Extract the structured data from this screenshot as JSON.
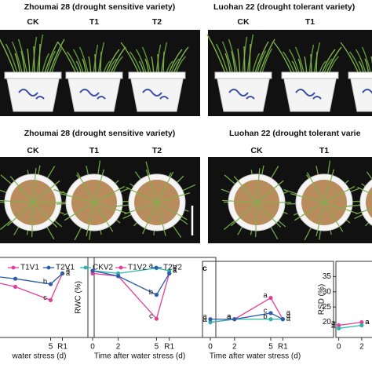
{
  "photos": [
    {
      "title": "Zhoumai 28 (drought sensitive variety)",
      "labels": [
        "CK",
        "T1",
        "T2"
      ]
    },
    {
      "title": "Luohan 22 (drought tolerant variety)",
      "labels": [
        "CK",
        "T1"
      ]
    },
    {
      "title": "Zhoumai 28 (drought sensitive variety)",
      "labels": [
        "CK",
        "T1",
        "T2"
      ]
    },
    {
      "title": "Luohan 22 (drought tolerant varie",
      "labels": [
        "CK",
        "T1"
      ]
    }
  ],
  "panel_label": "c",
  "chart_data": [
    {
      "type": "line",
      "xlabel": "water stress (d)",
      "x": [
        0,
        2,
        5,
        6
      ],
      "xlim": [
        0.7,
        6.7
      ],
      "xticks": [
        5,
        {
          "value": 6,
          "label": "R1"
        }
      ],
      "ylim": [
        55,
        85
      ],
      "series": [
        {
          "name": "T1V1",
          "color": "#e0409a",
          "values": [
            76,
            74,
            69,
            79
          ],
          "letters": [
            null,
            null,
            "c",
            "a"
          ]
        },
        {
          "name": "T2V1",
          "color": "#2a5caa",
          "values": [
            78,
            77,
            75,
            79
          ],
          "letters": [
            null,
            null,
            "b",
            "a"
          ]
        }
      ]
    },
    {
      "type": "line",
      "xlabel": "Time after water stress (d)",
      "ylabel": "RWC (%)",
      "x": [
        0,
        2,
        5,
        6
      ],
      "xlim": [
        -0.37,
        7.8
      ],
      "xticks": [
        0,
        2,
        5,
        {
          "value": 6,
          "label": "R1"
        }
      ],
      "ylim": [
        55,
        85
      ],
      "series": [
        {
          "name": "CKV2",
          "color": "#2bb5a8",
          "values": [
            80,
            79,
            81,
            80
          ],
          "letters": [
            null,
            null,
            "a",
            "a"
          ]
        },
        {
          "name": "T1V2",
          "color": "#e0409a",
          "values": [
            79,
            78,
            62,
            79
          ],
          "letters": [
            null,
            null,
            "c",
            "a"
          ]
        },
        {
          "name": "T2V2",
          "color": "#2a5caa",
          "values": [
            80,
            78,
            71,
            79
          ],
          "letters": [
            null,
            null,
            "b",
            "a"
          ]
        }
      ]
    },
    {
      "type": "line",
      "xlabel": "Time after water stress (d)",
      "x": [
        0,
        2,
        5,
        6
      ],
      "xlim": [
        -0.65,
        8.25
      ],
      "xticks": [
        0,
        2,
        5,
        {
          "value": 6,
          "label": "R1"
        }
      ],
      "ylim": [
        15,
        40
      ],
      "series": [
        {
          "color": "#e0409a",
          "values": [
            20,
            21,
            28,
            21
          ],
          "letters": [
            "a",
            "a",
            "a",
            "a"
          ]
        },
        {
          "color": "#2bb5a8",
          "values": [
            20,
            21,
            21,
            21
          ],
          "letters": [
            "a",
            "a",
            "b",
            "a"
          ]
        },
        {
          "color": "#2a5caa",
          "values": [
            21,
            21,
            23,
            21
          ],
          "letters": [
            "a",
            "a",
            "c",
            "a"
          ]
        }
      ]
    },
    {
      "type": "line",
      "ylabel": "RSD (%)",
      "x": [
        0,
        2
      ],
      "xlim": [
        -0.25,
        2.9
      ],
      "xticks": [
        0,
        2
      ],
      "ylim": [
        15,
        40
      ],
      "yticks": [
        20,
        25,
        30,
        35
      ],
      "series": [
        {
          "color": "#e0409a",
          "values": [
            19,
            20
          ],
          "letters": [
            "a",
            "a"
          ]
        },
        {
          "color": "#2bb5a8",
          "values": [
            18,
            19
          ],
          "letters": [
            "a",
            "a"
          ]
        }
      ]
    }
  ]
}
